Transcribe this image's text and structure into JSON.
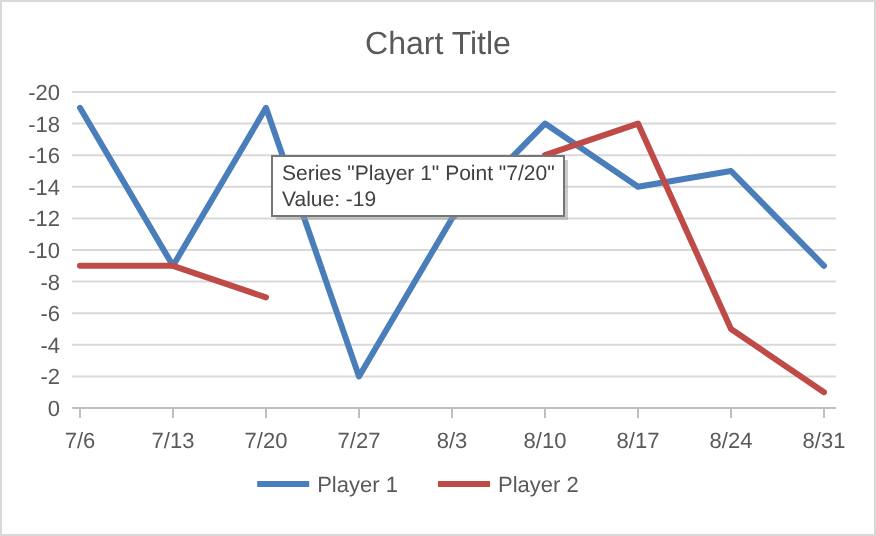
{
  "chart_data": {
    "type": "line",
    "title": "Chart Title",
    "categories": [
      "7/6",
      "7/13",
      "7/20",
      "7/27",
      "8/3",
      "8/10",
      "8/17",
      "8/24",
      "8/31"
    ],
    "series": [
      {
        "name": "Player 1",
        "color": "#4a7ebb",
        "values": [
          -19,
          -9,
          -19,
          -2,
          -12,
          -18,
          -14,
          -15,
          -9
        ]
      },
      {
        "name": "Player 2",
        "color": "#be4b48",
        "values": [
          -9,
          -9,
          -7,
          null,
          null,
          -16,
          -18,
          -5,
          -1
        ]
      }
    ],
    "ylim": [
      0,
      -20
    ],
    "yticks": [
      0,
      -2,
      -4,
      -6,
      -8,
      -10,
      -12,
      -14,
      -16,
      -18,
      -20
    ],
    "grid": "y",
    "legend": "bottom",
    "marker": "none",
    "line_style": "solid",
    "annotations": [
      "Series \"Player 1\" Point \"7/20\"\nValue: -19"
    ]
  }
}
